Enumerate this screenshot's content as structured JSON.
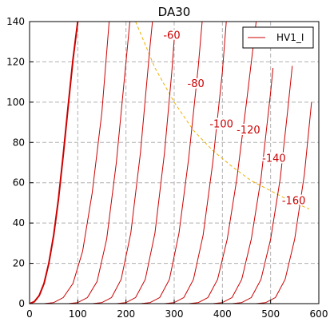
{
  "chart_data": {
    "type": "line",
    "title": "DA30",
    "xlabel": "",
    "ylabel": "",
    "xlim": [
      0,
      600
    ],
    "ylim": [
      0,
      140
    ],
    "xticks": [
      0,
      100,
      200,
      300,
      400,
      500,
      600
    ],
    "yticks": [
      0,
      20,
      40,
      60,
      80,
      100,
      120,
      140
    ],
    "grid": true,
    "legend": {
      "position": "top-right",
      "entries": [
        "HV1_I"
      ]
    },
    "colors": {
      "curve": "#cc0000",
      "limit": "#f0b000",
      "grid": "#b0b0b0"
    },
    "series": [
      {
        "name": "HV1_I",
        "points": [
          [
            0,
            0
          ],
          [
            10,
            1
          ],
          [
            20,
            4
          ],
          [
            30,
            10
          ],
          [
            40,
            20
          ],
          [
            50,
            34
          ],
          [
            60,
            52
          ],
          [
            70,
            74
          ],
          [
            80,
            98
          ],
          [
            90,
            121
          ],
          [
            100,
            140
          ]
        ]
      },
      {
        "points": [
          [
            30,
            0
          ],
          [
            50,
            0.5
          ],
          [
            70,
            3
          ],
          [
            90,
            10
          ],
          [
            110,
            26
          ],
          [
            130,
            55
          ],
          [
            150,
            95
          ],
          [
            165,
            140
          ]
        ]
      },
      {
        "points": [
          [
            80,
            0
          ],
          [
            100,
            0.5
          ],
          [
            120,
            3
          ],
          [
            140,
            11
          ],
          [
            160,
            32
          ],
          [
            180,
            70
          ],
          [
            200,
            120
          ],
          [
            208,
            140
          ]
        ]
      },
      {
        "points": [
          [
            130,
            0
          ],
          [
            150,
            0.5
          ],
          [
            170,
            3
          ],
          [
            190,
            12
          ],
          [
            210,
            35
          ],
          [
            230,
            75
          ],
          [
            250,
            128
          ],
          [
            255,
            140
          ]
        ]
      },
      {
        "points": [
          [
            180,
            0
          ],
          [
            200,
            0.5
          ],
          [
            220,
            3
          ],
          [
            240,
            12
          ],
          [
            260,
            35
          ],
          [
            280,
            75
          ],
          [
            295,
            115
          ],
          [
            300,
            131
          ]
        ]
      },
      {
        "points": [
          [
            230,
            0
          ],
          [
            250,
            0.5
          ],
          [
            270,
            3
          ],
          [
            290,
            12
          ],
          [
            310,
            35
          ],
          [
            330,
            72
          ],
          [
            350,
            118
          ],
          [
            358,
            140
          ]
        ]
      },
      {
        "points": [
          [
            280,
            0
          ],
          [
            300,
            0.5
          ],
          [
            320,
            3
          ],
          [
            340,
            12
          ],
          [
            360,
            34
          ],
          [
            380,
            70
          ],
          [
            400,
            115
          ],
          [
            408,
            140
          ]
        ]
      },
      {
        "points": [
          [
            330,
            0
          ],
          [
            350,
            0.5
          ],
          [
            370,
            3
          ],
          [
            390,
            12
          ],
          [
            410,
            32
          ],
          [
            430,
            62
          ],
          [
            450,
            100
          ],
          [
            470,
            140
          ]
        ]
      },
      {
        "points": [
          [
            380,
            0
          ],
          [
            400,
            0.5
          ],
          [
            420,
            3
          ],
          [
            440,
            12
          ],
          [
            460,
            32
          ],
          [
            480,
            62
          ],
          [
            500,
            105
          ],
          [
            505,
            117
          ]
        ]
      },
      {
        "points": [
          [
            420,
            0
          ],
          [
            440,
            0.5
          ],
          [
            460,
            3
          ],
          [
            480,
            12
          ],
          [
            500,
            32
          ],
          [
            520,
            62
          ],
          [
            535,
            95
          ],
          [
            545,
            118
          ]
        ]
      },
      {
        "points": [
          [
            470,
            0
          ],
          [
            490,
            0.5
          ],
          [
            510,
            3
          ],
          [
            530,
            12
          ],
          [
            550,
            32
          ],
          [
            570,
            64
          ],
          [
            585,
            100
          ]
        ]
      }
    ],
    "limit_line": {
      "points": [
        [
          220,
          140
        ],
        [
          260,
          117
        ],
        [
          300,
          100
        ],
        [
          340,
          86
        ],
        [
          380,
          76
        ],
        [
          420,
          68
        ],
        [
          460,
          61
        ],
        [
          500,
          56
        ],
        [
          540,
          51
        ],
        [
          580,
          47
        ]
      ]
    },
    "annotations": [
      {
        "text": "-60",
        "x": 295,
        "y": 133
      },
      {
        "text": "-80",
        "x": 345,
        "y": 109
      },
      {
        "text": "-100",
        "x": 398,
        "y": 89
      },
      {
        "text": "-120",
        "x": 454,
        "y": 86
      },
      {
        "text": "-140",
        "x": 507,
        "y": 72
      },
      {
        "text": "-160",
        "x": 548,
        "y": 51
      }
    ]
  }
}
